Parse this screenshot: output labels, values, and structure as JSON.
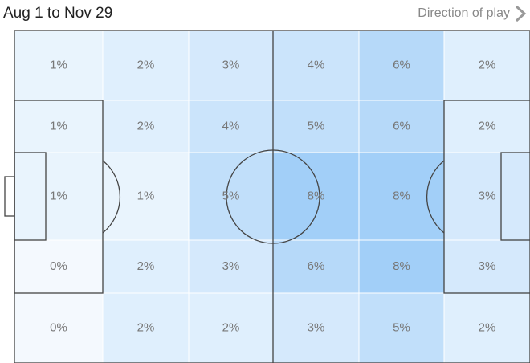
{
  "chart_data": {
    "type": "heatmap",
    "title": "Aug 1 to Nov 29",
    "annotation": "Direction of play",
    "color": "#3d9bf0",
    "values": [
      [
        1,
        2,
        3,
        4,
        6,
        2
      ],
      [
        1,
        2,
        4,
        5,
        6,
        2
      ],
      [
        1,
        1,
        5,
        8,
        8,
        3
      ],
      [
        0,
        2,
        3,
        6,
        8,
        3
      ],
      [
        0,
        2,
        2,
        3,
        5,
        2
      ]
    ],
    "value_labels": [
      [
        "1%",
        "2%",
        "3%",
        "4%",
        "6%",
        "2%"
      ],
      [
        "1%",
        "2%",
        "4%",
        "5%",
        "6%",
        "2%"
      ],
      [
        "1%",
        "1%",
        "5%",
        "8%",
        "8%",
        "3%"
      ],
      [
        "0%",
        "2%",
        "3%",
        "6%",
        "8%",
        "3%"
      ],
      [
        "0%",
        "2%",
        "2%",
        "3%",
        "5%",
        "2%"
      ]
    ]
  }
}
